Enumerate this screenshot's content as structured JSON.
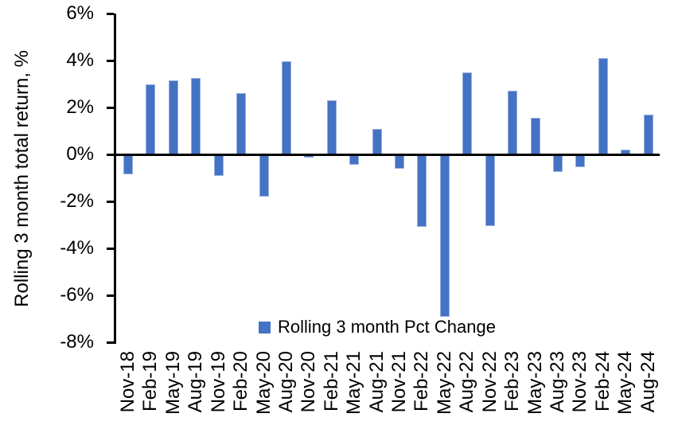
{
  "chart_data": {
    "type": "bar",
    "title": "",
    "xlabel": "",
    "ylabel": "Rolling 3 month total return, %",
    "categories": [
      "Nov-18",
      "Feb-19",
      "May-19",
      "Aug-19",
      "Nov-19",
      "Feb-20",
      "May-20",
      "Aug-20",
      "Nov-20",
      "Feb-21",
      "May-21",
      "Aug-21",
      "Nov-21",
      "Feb-22",
      "May-22",
      "Aug-22",
      "Nov-22",
      "Feb-23",
      "May-23",
      "Aug-23",
      "Nov-23",
      "Feb-24",
      "May-24",
      "Aug-24"
    ],
    "series": [
      {
        "name": "Rolling 3 month Pct Change",
        "values": [
          -0.85,
          3.0,
          3.15,
          3.25,
          -0.9,
          2.6,
          -1.8,
          3.95,
          -0.15,
          2.3,
          -0.45,
          1.1,
          -0.6,
          -3.1,
          -6.9,
          3.5,
          -3.05,
          2.7,
          1.55,
          -0.75,
          -0.55,
          4.1,
          0.2,
          1.7
        ]
      }
    ],
    "ylim": [
      -8,
      6
    ],
    "ytick_values": [
      6,
      4,
      2,
      0,
      -2,
      -4,
      -6,
      -8
    ],
    "ytick_labels": [
      "6%",
      "4%",
      "2%",
      "0%",
      "-2%",
      "-4%",
      "-6%",
      "-8%"
    ],
    "grid": false,
    "legend_position": "bottom-center",
    "bar_color": "#4472C4",
    "bar_border_color": "#94AFDC",
    "axis_color": "#000000"
  },
  "y_axis": {
    "title": "Rolling 3 month total return, %"
  },
  "legend": {
    "label": "Rolling 3 month Pct Change",
    "marker_color": "#4472C4"
  }
}
